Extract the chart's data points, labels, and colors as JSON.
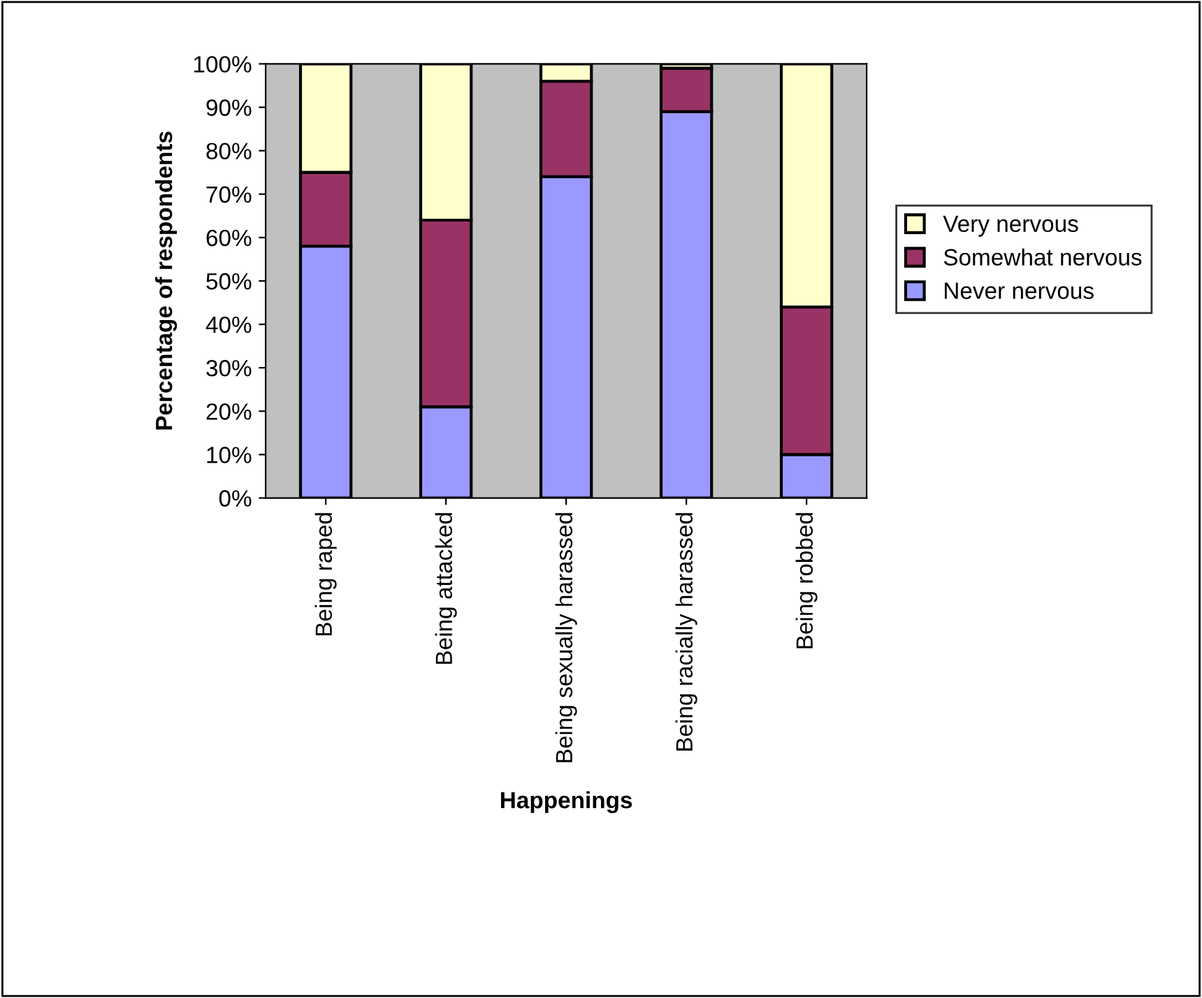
{
  "chart_data": {
    "type": "bar",
    "stacked": true,
    "xlabel": "Happenings",
    "ylabel": "Percentage of respondents",
    "categories": [
      "Being raped",
      "Being attacked",
      "Being sexually harassed",
      "Being racially harassed",
      "Being robbed"
    ],
    "series": [
      {
        "name": "Never nervous",
        "color": "#9999ff",
        "values": [
          58,
          21,
          74,
          89,
          10
        ]
      },
      {
        "name": "Somewhat nervous",
        "color": "#993366",
        "values": [
          17,
          43,
          22,
          10,
          34
        ]
      },
      {
        "name": "Very nervous",
        "color": "#ffffcc",
        "values": [
          25,
          36,
          4,
          1,
          56
        ]
      }
    ],
    "ylim": [
      0,
      100
    ],
    "yticks": [
      {
        "value": 0,
        "label": "0%"
      },
      {
        "value": 10,
        "label": "10%"
      },
      {
        "value": 20,
        "label": "20%"
      },
      {
        "value": 30,
        "label": "30%"
      },
      {
        "value": 40,
        "label": "40%"
      },
      {
        "value": 50,
        "label": "50%"
      },
      {
        "value": 60,
        "label": "60%"
      },
      {
        "value": 70,
        "label": "70%"
      },
      {
        "value": 80,
        "label": "80%"
      },
      {
        "value": 90,
        "label": "90%"
      },
      {
        "value": 100,
        "label": "100%"
      }
    ],
    "grid": false,
    "legend": "right"
  }
}
